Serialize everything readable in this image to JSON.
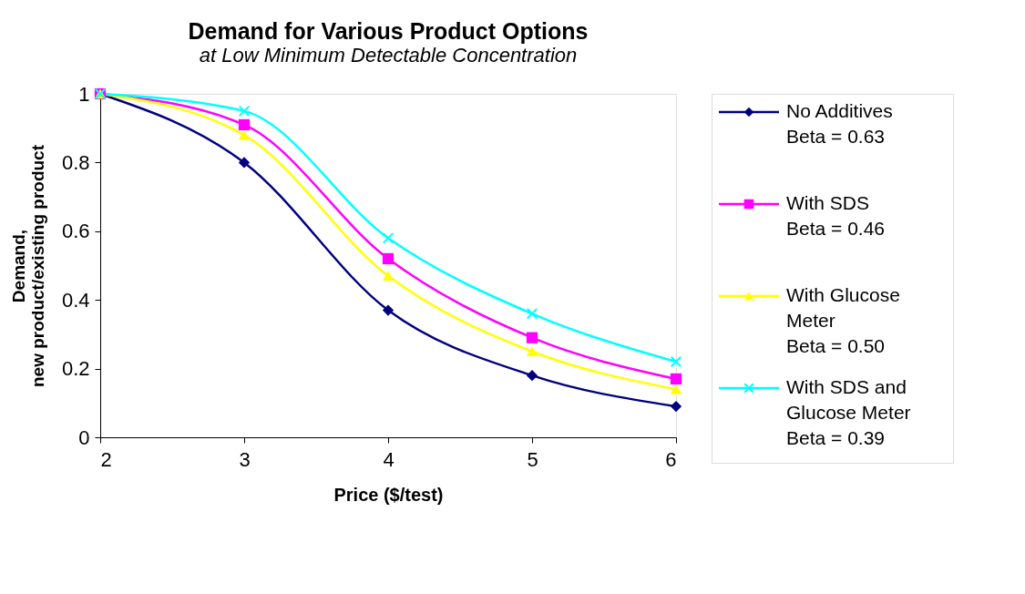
{
  "chart_data": {
    "type": "line",
    "title": "Demand for Various Product Options",
    "subtitle": "at Low Minimum Detectable Concentration",
    "xlabel": "Price ($/test)",
    "ylabel": "Demand,\nnew product/existing product",
    "x": [
      2,
      3,
      4,
      5,
      6
    ],
    "series": [
      {
        "name": "No Additives\nBeta = 0.63",
        "color": "#000080",
        "marker": "diamond",
        "values": [
          1,
          0.8,
          0.37,
          0.18,
          0.09
        ]
      },
      {
        "name": "With SDS\nBeta = 0.46",
        "color": "#ff00ff",
        "marker": "square",
        "values": [
          1,
          0.91,
          0.52,
          0.29,
          0.17
        ]
      },
      {
        "name": "With Glucose\nMeter\nBeta = 0.50",
        "color": "#ffff00",
        "marker": "triangle",
        "values": [
          1,
          0.88,
          0.47,
          0.25,
          0.14
        ]
      },
      {
        "name": "With SDS and\nGlucose Meter\nBeta = 0.39",
        "color": "#00ffff",
        "marker": "cross",
        "values": [
          1,
          0.95,
          0.58,
          0.36,
          0.22
        ]
      }
    ],
    "xlim": [
      2,
      6
    ],
    "xticks": [
      2,
      3,
      4,
      5,
      6
    ],
    "ylim": [
      0,
      1
    ],
    "yticks": [
      0,
      0.2,
      0.4,
      0.6,
      0.8,
      1
    ],
    "grid": false,
    "legend": "right",
    "line_style": "solid"
  }
}
